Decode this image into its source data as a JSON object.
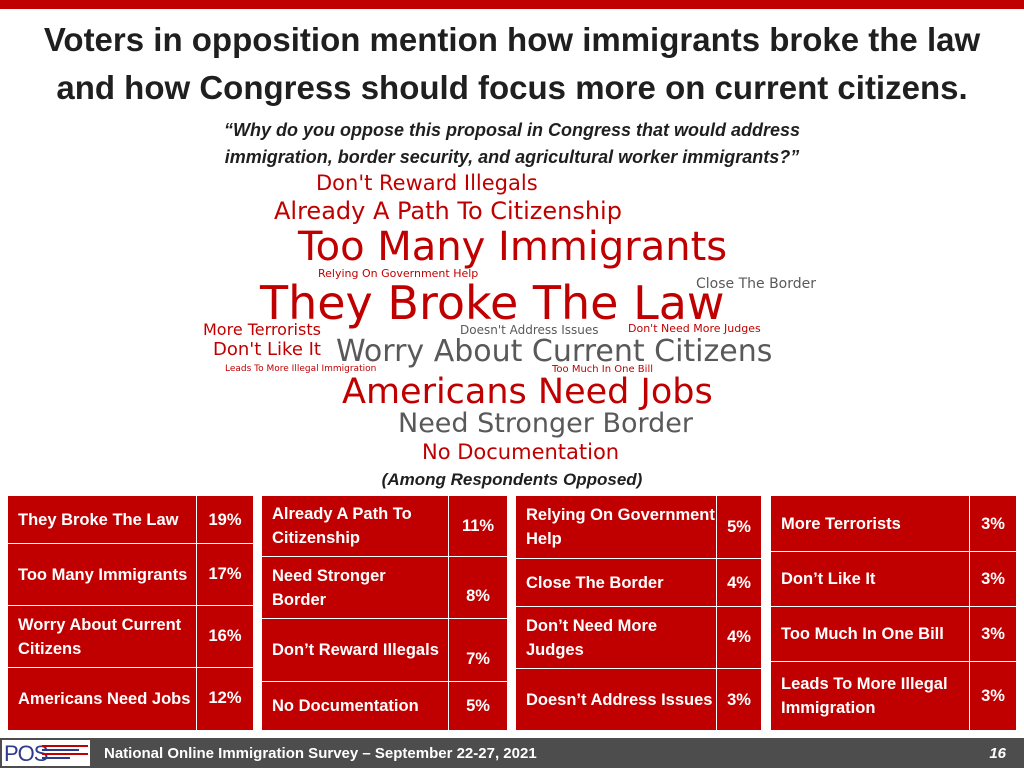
{
  "title_line1": "Voters in opposition mention how immigrants broke the law",
  "title_line2": "and how Congress should focus more on current citizens.",
  "question_line1": "“Why do you oppose this proposal in Congress that would address",
  "question_line2": "immigration, border security, and agricultural worker immigrants?”",
  "word_cloud": {
    "dont_reward_illegals": "Don't Reward Illegals",
    "already_path": "Already A Path To Citizenship",
    "too_many_immigrants": "Too Many Immigrants",
    "relying_on_gov": "Relying On Government Help",
    "close_the_border": "Close The Border",
    "they_broke_the_law": "They Broke The Law",
    "more_terrorists": "More Terrorists",
    "doesnt_address_issues": "Doesn't Address Issues",
    "dont_need_more_judges": "Don't Need More Judges",
    "dont_like_it": "Don't Like It",
    "worry_about_citizens": "Worry About Current Citizens",
    "leads_to_more_illegal": "Leads To More Illegal Immigration",
    "too_much_in_one_bill": "Too Much In One Bill",
    "americans_need_jobs": "Americans Need Jobs",
    "need_stronger_border": "Need Stronger Border",
    "no_documentation": "No Documentation"
  },
  "among_note": "(Among Respondents Opposed)",
  "tables": [
    [
      {
        "label": "They Broke The Law",
        "value": "19%"
      },
      {
        "label": "Too Many Immigrants",
        "value": "17%"
      },
      {
        "label": "Worry About Current Citizens",
        "value": "16%"
      },
      {
        "label": "Americans Need Jobs",
        "value": "12%"
      }
    ],
    [
      {
        "label": "Already A Path To Citizenship",
        "value": "11%"
      },
      {
        "label": "Need Stronger Border",
        "value": "8%"
      },
      {
        "label": "Don’t Reward Illegals",
        "value": "7%"
      },
      {
        "label": "No Documentation",
        "value": "5%"
      }
    ],
    [
      {
        "label": "Relying On Government Help",
        "value": "5%"
      },
      {
        "label": "Close The Border",
        "value": "4%"
      },
      {
        "label": "Don’t Need More Judges",
        "value": "4%"
      },
      {
        "label": "Doesn’t Address Issues",
        "value": "3%"
      }
    ],
    [
      {
        "label": "More Terrorists",
        "value": "3%"
      },
      {
        "label": "Don’t Like It",
        "value": "3%"
      },
      {
        "label": "Too Much In One Bill",
        "value": "3%"
      },
      {
        "label": "Leads To More Illegal Immigration",
        "value": "3%"
      }
    ]
  ],
  "footer": {
    "logo_text": "POS",
    "survey": "National Online Immigration Survey – September 22-27, 2021",
    "page": "16"
  },
  "colors": {
    "accent": "#c00000",
    "footer_bg": "#4d4d4d",
    "text_gray": "#595959"
  }
}
